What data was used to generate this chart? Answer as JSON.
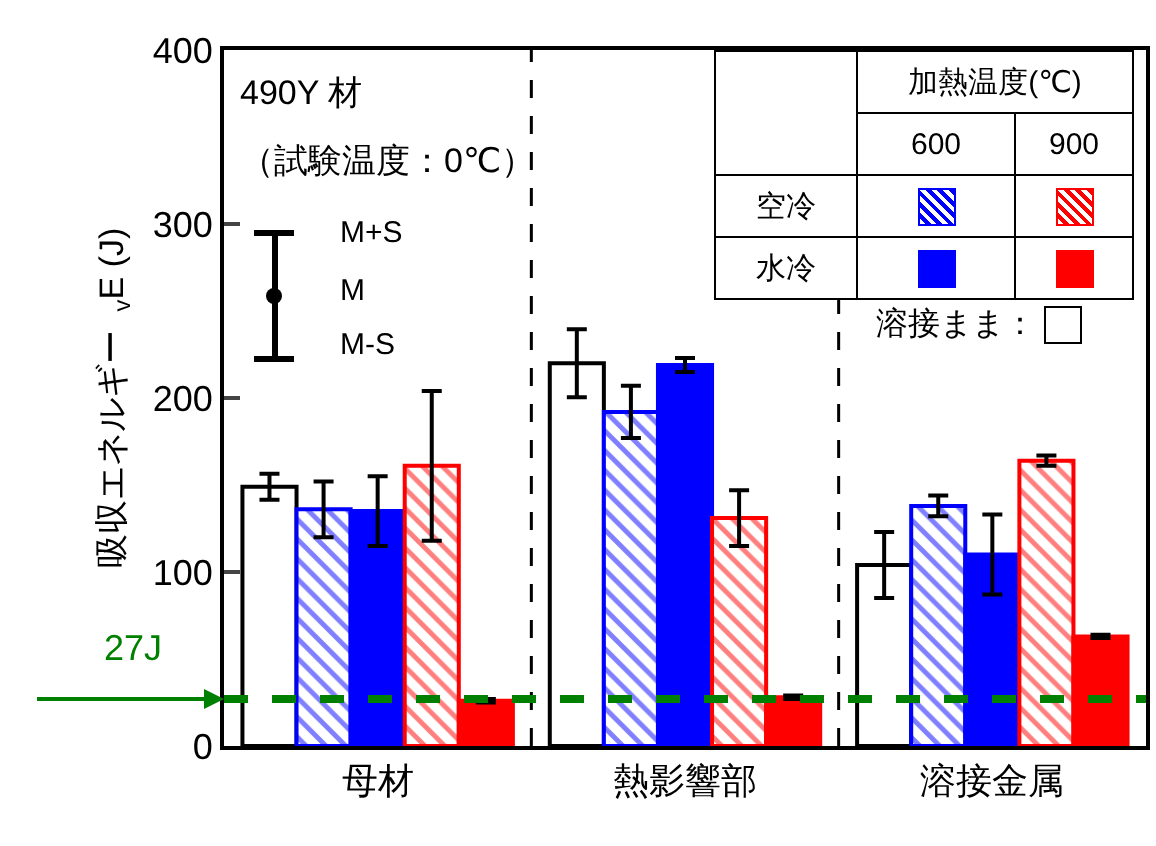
{
  "chart_data": {
    "type": "bar",
    "ylabel": "吸収エネルギー  $_{v}$E (J)",
    "legend_title": "加熱温度(℃)",
    "legend": "top right",
    "categories": [
      "母材",
      "熱影響部",
      "溶接金属"
    ],
    "series": [
      {
        "name": "溶接まま：",
        "color": "#ffffff",
        "values": [
          149,
          220,
          104
        ],
        "errors": [
          7.5,
          19.5,
          19
        ]
      },
      {
        "color": "#0000ff",
        "values": [
          136,
          192,
          138
        ],
        "errors": [
          16,
          15,
          6
        ]
      },
      {
        "color": "#0000ff",
        "values": [
          135,
          219,
          110
        ],
        "errors": [
          20,
          4,
          23
        ]
      },
      {
        "color": "#ff0000",
        "values": [
          161,
          131,
          164
        ],
        "errors": [
          43,
          16,
          3
        ]
      },
      {
        "color": "#ff0000",
        "values": [
          26,
          28,
          63
        ],
        "errors": [
          1,
          1,
          1
        ]
      }
    ],
    "ylim": [
      0,
      400
    ],
    "yticks": [
      0,
      100,
      200,
      300,
      400
    ],
    "grid": false,
    "ref_lines": [
      {
        "axis": "y",
        "value": 27,
        "label": "27J",
        "color": "#008000",
        "line_style": "dashed"
      }
    ],
    "annotations": [
      "490Y 材",
      "（試験温度：0℃）",
      "M+S",
      "M",
      "M-S",
      "600",
      "900",
      "空冷",
      "水冷"
    ]
  }
}
